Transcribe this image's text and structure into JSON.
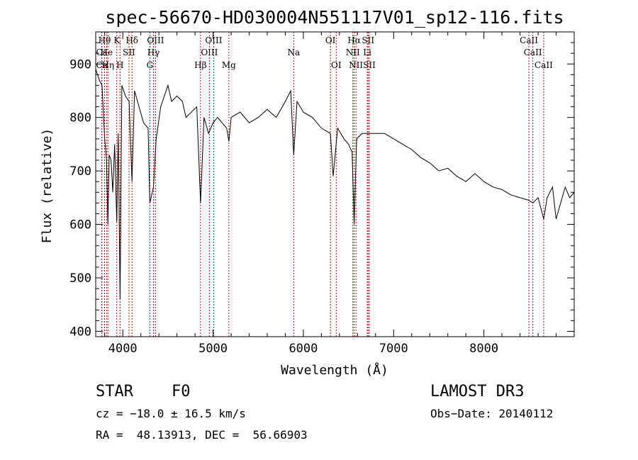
{
  "chart_data": {
    "type": "line",
    "title": "spec-56670-HD030004N551117V01_sp12-116.fits",
    "xlabel": "Wavelength (Å)",
    "ylabel": "Flux (relative)",
    "xlim": [
      3700,
      9000
    ],
    "ylim": [
      390,
      960
    ],
    "xticks": [
      4000,
      5000,
      6000,
      7000,
      8000
    ],
    "xtick_labels": [
      "4000",
      "5000",
      "6000",
      "7000",
      "8000"
    ],
    "yticks": [
      400,
      500,
      600,
      700,
      800,
      900
    ],
    "ytick_labels": [
      "400",
      "500",
      "600",
      "700",
      "800",
      "900"
    ],
    "grid": false,
    "line_color": "#000000",
    "marker_color": "#cc0000",
    "spectrum": {
      "x": [
        3700,
        3740,
        3770,
        3800,
        3820,
        3835,
        3850,
        3870,
        3889,
        3910,
        3933,
        3950,
        3970,
        3990,
        4030,
        4070,
        4102,
        4130,
        4180,
        4230,
        4280,
        4300,
        4340,
        4370,
        4420,
        4460,
        4500,
        4540,
        4600,
        4660,
        4700,
        4760,
        4820,
        4861,
        4900,
        4950,
        5000,
        5050,
        5100,
        5150,
        5175,
        5200,
        5300,
        5400,
        5500,
        5600,
        5700,
        5800,
        5860,
        5893,
        5930,
        6000,
        6100,
        6200,
        6300,
        6330,
        6380,
        6450,
        6500,
        6540,
        6563,
        6590,
        6650,
        6700,
        6800,
        6900,
        7000,
        7100,
        7200,
        7300,
        7400,
        7500,
        7600,
        7700,
        7800,
        7900,
        8000,
        8100,
        8200,
        8300,
        8400,
        8498,
        8542,
        8600,
        8662,
        8700,
        8760,
        8800,
        8850,
        8900,
        8950,
        9000
      ],
      "y": [
        890,
        870,
        860,
        760,
        720,
        600,
        730,
        720,
        660,
        750,
        605,
        770,
        460,
        860,
        840,
        830,
        680,
        850,
        820,
        790,
        780,
        640,
        670,
        760,
        820,
        840,
        860,
        830,
        840,
        830,
        800,
        810,
        820,
        640,
        800,
        770,
        790,
        800,
        790,
        780,
        755,
        800,
        810,
        790,
        800,
        815,
        800,
        830,
        850,
        730,
        830,
        810,
        800,
        780,
        770,
        690,
        780,
        760,
        750,
        735,
        600,
        760,
        770,
        770,
        770,
        770,
        760,
        750,
        740,
        725,
        715,
        700,
        705,
        690,
        680,
        695,
        680,
        670,
        665,
        655,
        650,
        645,
        640,
        650,
        610,
        650,
        670,
        610,
        640,
        670,
        650,
        660
      ]
    },
    "lines": [
      {
        "name": "Hθ",
        "wave": 3798,
        "side": "top",
        "row": 1
      },
      {
        "name": "Ca",
        "wave": 3768,
        "side": "top",
        "row": 2
      },
      {
        "name": "Ca",
        "wave": 3768,
        "side": "top",
        "row": 3
      },
      {
        "name": "Hη",
        "wave": 3835,
        "side": "top",
        "row": 3
      },
      {
        "name": "He",
        "wave": 3820,
        "side": "top",
        "row": 2
      },
      {
        "name": "K",
        "wave": 3934,
        "side": "top",
        "row": 1
      },
      {
        "name": "H",
        "wave": 3969,
        "side": "top",
        "row": 3
      },
      {
        "name": "SII",
        "wave": 4069,
        "side": "top",
        "row": 2
      },
      {
        "name": "Hδ",
        "wave": 4102,
        "side": "top",
        "row": 1
      },
      {
        "name": "OIII",
        "wave": 4363,
        "side": "top",
        "row": 1
      },
      {
        "name": "Hγ",
        "wave": 4340,
        "side": "top",
        "row": 2
      },
      {
        "name": "G",
        "wave": 4300,
        "side": "top",
        "row": 3
      },
      {
        "name": "Hβ",
        "wave": 4861,
        "side": "top",
        "row": 3
      },
      {
        "name": "OIII",
        "wave": 5007,
        "side": "top",
        "row": 1
      },
      {
        "name": "OIII",
        "wave": 4959,
        "side": "top",
        "row": 2
      },
      {
        "name": "Mg",
        "wave": 5175,
        "side": "top",
        "row": 3
      },
      {
        "name": "Na",
        "wave": 5893,
        "side": "top",
        "row": 2
      },
      {
        "name": "OI",
        "wave": 6300,
        "side": "top",
        "row": 1
      },
      {
        "name": "OI",
        "wave": 6364,
        "side": "top",
        "row": 3
      },
      {
        "name": "Hα",
        "wave": 6563,
        "side": "top",
        "row": 1
      },
      {
        "name": "NII",
        "wave": 6548,
        "side": "top",
        "row": 2
      },
      {
        "name": "NII",
        "wave": 6583,
        "side": "top",
        "row": 3
      },
      {
        "name": "SII",
        "wave": 6717,
        "side": "top",
        "row": 1
      },
      {
        "name": "Li",
        "wave": 6708,
        "side": "top",
        "row": 2
      },
      {
        "name": "SII",
        "wave": 6731,
        "side": "top",
        "row": 3
      },
      {
        "name": "CaII",
        "wave": 8498,
        "side": "top",
        "row": 1
      },
      {
        "name": "CaII",
        "wave": 8542,
        "side": "top",
        "row": 2
      },
      {
        "name": "CaII",
        "wave": 8662,
        "side": "top",
        "row": 3
      }
    ]
  },
  "info": {
    "class": "STAR",
    "subclass": "F0",
    "survey": "LAMOST DR3",
    "cz": "cz = −18.0 ± 16.5 km/s",
    "obs_date": "Obs−Date: 20140112",
    "radec": "RA =  48.13913, DEC =  56.66903"
  }
}
